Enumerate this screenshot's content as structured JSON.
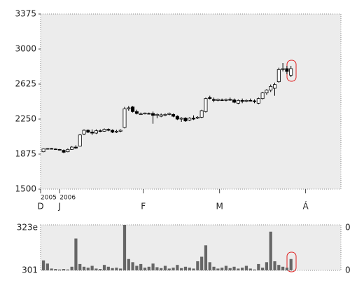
{
  "chart_data": {
    "type": "candlestick",
    "categories": [
      null,
      null,
      null,
      null,
      null,
      null,
      null,
      null,
      null,
      null,
      null,
      null,
      null,
      null,
      null,
      null,
      null,
      null,
      null,
      null,
      null,
      null,
      null,
      null,
      null,
      null,
      null,
      null,
      null,
      null,
      null,
      null,
      null,
      null,
      null,
      null,
      null,
      null,
      null,
      null,
      null,
      null,
      null,
      null,
      null,
      null,
      null,
      null,
      null,
      null,
      null,
      null,
      null,
      null,
      null,
      null,
      null,
      null,
      null,
      null,
      null,
      null
    ],
    "open": [
      1900,
      1930,
      1935,
      1930,
      1925,
      1915,
      1900,
      1925,
      1950,
      1960,
      2090,
      2130,
      2110,
      2100,
      2125,
      2120,
      2140,
      2130,
      2110,
      2120,
      2160,
      2360,
      2380,
      2330,
      2300,
      2305,
      2310,
      2310,
      2290,
      2280,
      2290,
      2300,
      2300,
      2280,
      2250,
      2260,
      2240,
      2260,
      2260,
      2270,
      2330,
      2480,
      2460,
      2450,
      2455,
      2450,
      2460,
      2455,
      2420,
      2450,
      2440,
      2450,
      2445,
      2420,
      2470,
      2530,
      2560,
      2580,
      2650,
      2780,
      2790,
      2720
    ],
    "high": [
      1935,
      1940,
      1940,
      1935,
      1930,
      1925,
      1935,
      1960,
      1970,
      2090,
      2140,
      2140,
      2140,
      2140,
      2140,
      2150,
      2150,
      2140,
      2135,
      2140,
      2380,
      2390,
      2390,
      2350,
      2320,
      2320,
      2320,
      2330,
      2310,
      2310,
      2310,
      2320,
      2310,
      2290,
      2270,
      2270,
      2270,
      2290,
      2280,
      2350,
      2480,
      2500,
      2480,
      2470,
      2470,
      2470,
      2480,
      2470,
      2460,
      2470,
      2460,
      2470,
      2460,
      2480,
      2540,
      2570,
      2620,
      2640,
      2800,
      2850,
      2820,
      2820
    ],
    "low": [
      1895,
      1925,
      1928,
      1925,
      1915,
      1885,
      1895,
      1920,
      1930,
      1955,
      2080,
      2100,
      2080,
      2090,
      2110,
      2115,
      2120,
      2100,
      2100,
      2110,
      2150,
      2340,
      2320,
      2300,
      2295,
      2300,
      2300,
      2200,
      2260,
      2270,
      2280,
      2290,
      2270,
      2240,
      2220,
      2220,
      2230,
      2240,
      2250,
      2260,
      2320,
      2460,
      2430,
      2440,
      2445,
      2440,
      2445,
      2420,
      2410,
      2420,
      2430,
      2440,
      2420,
      2410,
      2460,
      2510,
      2540,
      2500,
      2640,
      2760,
      2730,
      2700
    ],
    "close": [
      1930,
      1935,
      1930,
      1928,
      1920,
      1895,
      1925,
      1950,
      1940,
      2080,
      2130,
      2110,
      2100,
      2125,
      2120,
      2140,
      2130,
      2110,
      2120,
      2130,
      2360,
      2370,
      2330,
      2310,
      2305,
      2315,
      2305,
      2290,
      2300,
      2295,
      2300,
      2310,
      2280,
      2250,
      2260,
      2230,
      2260,
      2250,
      2270,
      2340,
      2470,
      2470,
      2450,
      2460,
      2450,
      2460,
      2455,
      2430,
      2450,
      2440,
      2450,
      2445,
      2440,
      2470,
      2530,
      2560,
      2600,
      2620,
      2780,
      2790,
      2760,
      2790
    ],
    "volume": [
      22,
      15,
      4,
      3,
      2,
      3,
      2,
      8,
      70,
      14,
      8,
      6,
      10,
      4,
      3,
      12,
      8,
      5,
      6,
      4,
      100,
      25,
      18,
      10,
      14,
      6,
      8,
      15,
      7,
      5,
      10,
      4,
      6,
      12,
      5,
      8,
      6,
      4,
      20,
      30,
      55,
      18,
      8,
      4,
      6,
      10,
      5,
      8,
      4,
      6,
      10,
      4,
      2,
      14,
      6,
      18,
      85,
      20,
      12,
      8,
      6,
      25
    ],
    "volume_lim": [
      0,
      100
    ],
    "volume_labels": [
      "323e",
      "301",
      "0",
      "0"
    ],
    "up_color": "#ffffff",
    "down_color": "#000000",
    "volume_color": "#666666",
    "ylim": [
      1500,
      3375
    ],
    "yticks": [
      1500,
      1875,
      2250,
      2625,
      3000,
      3375
    ],
    "xlim": [
      -0.7,
      73.3
    ],
    "xticks": [
      {
        "value": -0.7,
        "label": "D"
      },
      {
        "value": 4,
        "label": "J"
      },
      {
        "value": 24.6,
        "label": "F"
      },
      {
        "value": 43.4,
        "label": "M"
      },
      {
        "value": 64.6,
        "label": "Á"
      }
    ],
    "year_labels": [
      {
        "value": -0.7,
        "label": "2005"
      },
      {
        "value": 4,
        "label": "2006"
      }
    ]
  }
}
